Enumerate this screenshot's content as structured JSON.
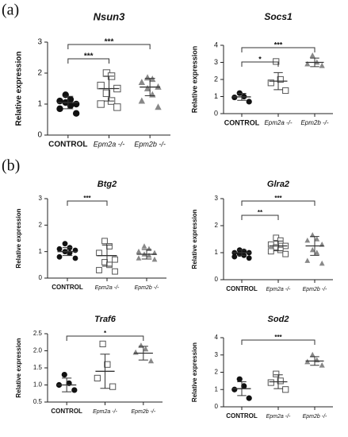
{
  "panel_labels": [
    "(a)",
    "(b)"
  ],
  "chart_data": [
    {
      "type": "dotplot",
      "title": "Nsun3",
      "ylabel": "Relative expression",
      "categories": [
        "CONTROL",
        "Epm2a -/-",
        "Epm2b -/-"
      ],
      "colors": [
        "#111111",
        "#555555",
        "#888888"
      ],
      "markers": [
        "circle",
        "square",
        "triangle"
      ],
      "points": [
        [
          1.3,
          1.15,
          1.1,
          1.0,
          1.05,
          0.95,
          0.85,
          0.7
        ],
        [
          2.0,
          1.9,
          1.6,
          1.5,
          1.35,
          1.1,
          1.0,
          0.9
        ],
        [
          1.85,
          1.8,
          1.7,
          1.55,
          1.5,
          1.3,
          1.1,
          0.9
        ]
      ],
      "means": [
        1.05,
        1.5,
        1.55
      ],
      "sds": [
        0.2,
        0.4,
        0.28
      ],
      "ylim": [
        0,
        3
      ],
      "yticks": [
        0,
        1,
        2,
        3
      ],
      "comparisons": [
        {
          "from": 0,
          "to": 1,
          "label": "***"
        },
        {
          "from": 0,
          "to": 2,
          "label": "***"
        }
      ]
    },
    {
      "type": "dotplot",
      "title": "Socs1",
      "ylabel": "Relative expression",
      "categories": [
        "CONTROL",
        "Epm2a -/-",
        "Epm2b -/-"
      ],
      "colors": [
        "#111111",
        "#555555",
        "#888888"
      ],
      "markers": [
        "circle",
        "square",
        "triangle"
      ],
      "points": [
        [
          1.2,
          1.0,
          0.95,
          0.7
        ],
        [
          3.05,
          2.0,
          1.8,
          1.35
        ],
        [
          3.4,
          3.0,
          2.9,
          2.8
        ]
      ],
      "means": [
        0.98,
        1.9,
        3.0
      ],
      "sds": [
        0.2,
        0.5,
        0.25
      ],
      "ylim": [
        0,
        4
      ],
      "yticks": [
        0,
        1,
        2,
        3,
        4
      ],
      "comparisons": [
        {
          "from": 0,
          "to": 1,
          "label": "*"
        },
        {
          "from": 0,
          "to": 2,
          "label": "***"
        }
      ]
    },
    {
      "type": "dotplot",
      "title": "Btg2",
      "ylabel": "Relative expression",
      "categories": [
        "CONTROL",
        "Epm2a -/-",
        "Epm2b -/-"
      ],
      "colors": [
        "#111111",
        "#555555",
        "#888888"
      ],
      "markers": [
        "circle",
        "square",
        "triangle"
      ],
      "points": [
        [
          1.3,
          1.15,
          1.1,
          1.05,
          1.0,
          0.95,
          0.8,
          0.75
        ],
        [
          1.4,
          1.2,
          0.95,
          0.7,
          0.6,
          0.5,
          0.3,
          0.25
        ],
        [
          1.2,
          1.1,
          1.0,
          0.95,
          0.9,
          0.85,
          0.75,
          0.7
        ]
      ],
      "means": [
        1.0,
        0.85,
        0.9
      ],
      "sds": [
        0.15,
        0.4,
        0.18
      ],
      "ylim": [
        0,
        3
      ],
      "yticks": [
        0,
        1,
        2,
        3
      ],
      "comparisons": [
        {
          "from": 0,
          "to": 1,
          "label": "***"
        }
      ]
    },
    {
      "type": "dotplot",
      "title": "Glra2",
      "ylabel": "Relative expression",
      "categories": [
        "CONTROL",
        "Epm2a -/-",
        "Epm2b -/-"
      ],
      "colors": [
        "#111111",
        "#555555",
        "#888888"
      ],
      "markers": [
        "circle",
        "square",
        "triangle"
      ],
      "points": [
        [
          1.1,
          1.05,
          1.0,
          1.0,
          0.95,
          0.9,
          0.85,
          0.8
        ],
        [
          1.55,
          1.45,
          1.3,
          1.25,
          1.2,
          1.1,
          1.05,
          0.95
        ],
        [
          1.65,
          1.5,
          1.45,
          1.3,
          1.1,
          1.0,
          0.7,
          0.6
        ]
      ],
      "means": [
        1.0,
        1.25,
        1.25
      ],
      "sds": [
        0.1,
        0.18,
        0.35
      ],
      "ylim": [
        0,
        3
      ],
      "yticks": [
        0,
        1,
        2,
        3
      ],
      "comparisons": [
        {
          "from": 0,
          "to": 1,
          "label": "**"
        },
        {
          "from": 0,
          "to": 2,
          "label": "***"
        }
      ]
    },
    {
      "type": "dotplot",
      "title": "Traf6",
      "ylabel": "Relative expression",
      "categories": [
        "CONTROL",
        "Epm2a -/-",
        "Epm2b -/-"
      ],
      "colors": [
        "#111111",
        "#555555",
        "#888888"
      ],
      "markers": [
        "circle",
        "square",
        "triangle"
      ],
      "points": [
        [
          1.3,
          1.05,
          1.0,
          0.85
        ],
        [
          2.2,
          1.6,
          1.2,
          0.95
        ],
        [
          2.15,
          2.05,
          1.95,
          1.7
        ]
      ],
      "means": [
        1.0,
        1.4,
        1.93
      ],
      "sds": [
        0.2,
        0.5,
        0.2
      ],
      "ylim": [
        0.5,
        2.5
      ],
      "yticks": [
        0.5,
        {
          "value": 1.0,
          "label": "1.0"
        },
        1.5,
        {
          "value": 2.0,
          "label": "2.0"
        },
        2.5
      ],
      "comparisons": [
        {
          "from": 0,
          "to": 2,
          "label": "*"
        }
      ]
    },
    {
      "type": "dotplot",
      "title": "Sod2",
      "ylabel": "Relative expression",
      "categories": [
        "CONTROL",
        "Epm2a -/-",
        "Epm2b -/-"
      ],
      "colors": [
        "#111111",
        "#555555",
        "#888888"
      ],
      "markers": [
        "circle",
        "square",
        "triangle"
      ],
      "points": [
        [
          1.6,
          1.2,
          1.0,
          0.5
        ],
        [
          1.9,
          1.5,
          1.4,
          1.0
        ],
        [
          3.0,
          2.7,
          2.6,
          2.4
        ]
      ],
      "means": [
        1.05,
        1.45,
        2.65
      ],
      "sds": [
        0.4,
        0.4,
        0.25
      ],
      "ylim": [
        0,
        4
      ],
      "yticks": [
        0,
        1,
        2,
        3,
        4
      ],
      "comparisons": [
        {
          "from": 0,
          "to": 2,
          "label": "***"
        }
      ]
    }
  ]
}
